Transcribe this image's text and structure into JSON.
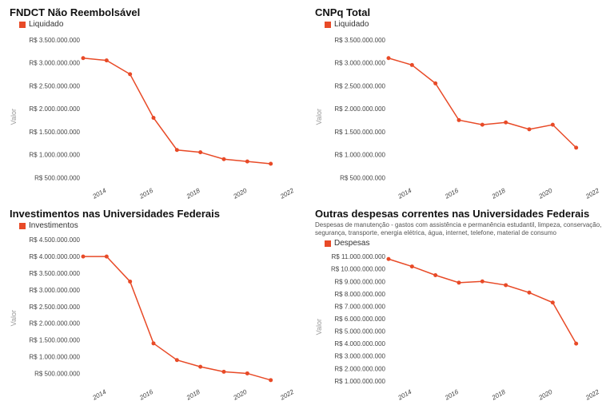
{
  "layout": {
    "rows": 2,
    "cols": 2,
    "background_color": "#ffffff"
  },
  "common": {
    "line_color": "#e84a27",
    "marker_color": "#e84a27",
    "marker_radius": 2.5,
    "line_width": 1.5,
    "grid_color": "#e0e0e0",
    "axis_color": "#cccccc",
    "text_color": "#444444",
    "title_color": "#111111",
    "ylabel_color": "#999999",
    "title_fontsize": 13,
    "tick_fontsize": 8,
    "ylabel_fontsize": 9
  },
  "charts": [
    {
      "id": "fndct",
      "type": "line",
      "title": "FNDCT Não Reembolsável",
      "legend_label": "Liquidado",
      "ylabel": "Valor",
      "x": [
        2013,
        2014,
        2015,
        2016,
        2017,
        2018,
        2019,
        2020,
        2021
      ],
      "y": [
        3100000000,
        3050000000,
        2750000000,
        1800000000,
        1100000000,
        1050000000,
        900000000,
        850000000,
        800000000
      ],
      "yticks": [
        500000000,
        1000000000,
        1500000000,
        2000000000,
        2500000000,
        3000000000,
        3500000000
      ],
      "ytick_labels": [
        "R$ 500.000.000",
        "R$ 1.000.000.000",
        "R$ 1.500.000.000",
        "R$ 2.000.000.000",
        "R$ 2.500.000.000",
        "R$ 3.000.000.000",
        "R$ 3.500.000.000"
      ],
      "xlim": [
        2013,
        2022
      ],
      "ylim": [
        400000000,
        3600000000
      ],
      "xticks": [
        2014,
        2016,
        2018,
        2020,
        2022
      ],
      "xtick_labels": [
        "2014",
        "2016",
        "2018",
        "2020",
        "2022"
      ]
    },
    {
      "id": "cnpq",
      "type": "line",
      "title": "CNPq Total",
      "legend_label": "Liquidado",
      "ylabel": "Valor",
      "x": [
        2013,
        2014,
        2015,
        2016,
        2017,
        2018,
        2019,
        2020,
        2021
      ],
      "y": [
        3100000000,
        2950000000,
        2550000000,
        1750000000,
        1650000000,
        1700000000,
        1550000000,
        1650000000,
        1150000000
      ],
      "yticks": [
        500000000,
        1000000000,
        1500000000,
        2000000000,
        2500000000,
        3000000000,
        3500000000
      ],
      "ytick_labels": [
        "R$ 500.000.000",
        "R$ 1.000.000.000",
        "R$ 1.500.000.000",
        "R$ 2.000.000.000",
        "R$ 2.500.000.000",
        "R$ 3.000.000.000",
        "R$ 3.500.000.000"
      ],
      "xlim": [
        2013,
        2022
      ],
      "ylim": [
        400000000,
        3600000000
      ],
      "xticks": [
        2014,
        2016,
        2018,
        2020,
        2022
      ],
      "xtick_labels": [
        "2014",
        "2016",
        "2018",
        "2020",
        "2022"
      ]
    },
    {
      "id": "investimentos",
      "type": "line",
      "title": "Investimentos nas Universidades Federais",
      "legend_label": "Investimentos",
      "ylabel": "Valor",
      "x": [
        2013,
        2014,
        2015,
        2016,
        2017,
        2018,
        2019,
        2020,
        2021
      ],
      "y": [
        4000000000,
        4000000000,
        3250000000,
        1400000000,
        900000000,
        700000000,
        550000000,
        500000000,
        300000000
      ],
      "yticks": [
        500000000,
        1000000000,
        1500000000,
        2000000000,
        2500000000,
        3000000000,
        3500000000,
        4000000000,
        4500000000
      ],
      "ytick_labels": [
        "R$ 500.000.000",
        "R$ 1.000.000.000",
        "R$ 1.500.000.000",
        "R$ 2.000.000.000",
        "R$ 2.500.000.000",
        "R$ 3.000.000.000",
        "R$ 3.500.000.000",
        "R$ 4.000.000.000",
        "R$ 4.500.000.000"
      ],
      "xlim": [
        2013,
        2022
      ],
      "ylim": [
        200000000,
        4600000000
      ],
      "xticks": [
        2014,
        2016,
        2018,
        2020,
        2022
      ],
      "xtick_labels": [
        "2014",
        "2016",
        "2018",
        "2020",
        "2022"
      ]
    },
    {
      "id": "outras",
      "type": "line",
      "title": "Outras despesas correntes nas Universidades Federais",
      "subtitle": "Despesas de manutenção - gastos com assistência e permanência estudantil, limpeza, conservação, segurança, transporte, energia elétrica, água, internet, telefone, material de consumo",
      "legend_label": "Despesas",
      "ylabel": "Valor",
      "x": [
        2013,
        2014,
        2015,
        2016,
        2017,
        2018,
        2019,
        2020,
        2021
      ],
      "y": [
        10800000000,
        10200000000,
        9500000000,
        8900000000,
        9000000000,
        8700000000,
        8100000000,
        7300000000,
        4000000000
      ],
      "yticks": [
        1000000000,
        2000000000,
        3000000000,
        4000000000,
        5000000000,
        6000000000,
        7000000000,
        8000000000,
        9000000000,
        10000000000,
        11000000000
      ],
      "ytick_labels": [
        "R$ 1.000.000.000",
        "R$ 2.000.000.000",
        "R$ 3.000.000.000",
        "R$ 4.000.000.000",
        "R$ 5.000.000.000",
        "R$ 6.000.000.000",
        "R$ 7.000.000.000",
        "R$ 8.000.000.000",
        "R$ 9.000.000.000",
        "R$ 10.000.000.000",
        "R$ 11.000.000.000"
      ],
      "xlim": [
        2013,
        2022
      ],
      "ylim": [
        800000000,
        11200000000
      ],
      "xticks": [
        2014,
        2016,
        2018,
        2020,
        2022
      ],
      "xtick_labels": [
        "2014",
        "2016",
        "2018",
        "2020",
        "2022"
      ]
    }
  ]
}
